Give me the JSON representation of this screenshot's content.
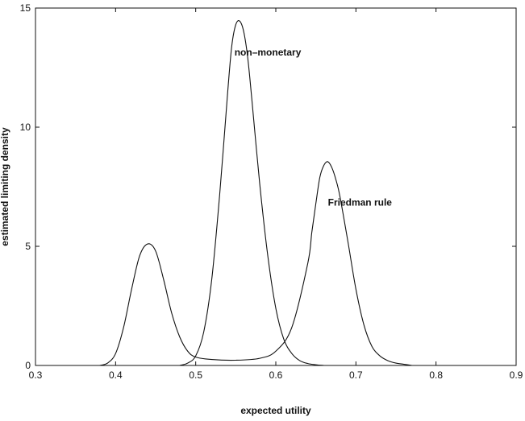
{
  "chart_data": {
    "type": "line",
    "title": "",
    "xlabel": "expected utility",
    "ylabel": "estimated limiting density",
    "xlim": [
      0.3,
      0.9
    ],
    "ylim": [
      0,
      15
    ],
    "xticks": [
      0.3,
      0.4,
      0.5,
      0.6,
      0.7,
      0.8,
      0.9
    ],
    "xtick_labels": [
      "0.3",
      "0.4",
      "0.5",
      "0.6",
      "0.7",
      "0.8",
      "0.9"
    ],
    "yticks": [
      0,
      5,
      10,
      15
    ],
    "ytick_labels": [
      "0",
      "5",
      "10",
      "15"
    ],
    "grid": false,
    "line_color": "#111111",
    "series": [
      {
        "x": [
          0.38,
          0.39,
          0.4,
          0.41,
          0.42,
          0.43,
          0.44,
          0.45,
          0.46,
          0.47,
          0.48,
          0.49,
          0.5,
          0.52,
          0.55,
          0.58,
          0.6,
          0.62,
          0.64,
          0.645,
          0.65,
          0.655,
          0.66,
          0.665,
          0.67,
          0.675,
          0.68,
          0.69,
          0.7,
          0.71,
          0.72,
          0.73,
          0.74,
          0.75,
          0.76,
          0.77
        ],
        "y": [
          0.0,
          0.1,
          0.5,
          1.6,
          3.2,
          4.6,
          5.1,
          4.8,
          3.6,
          2.2,
          1.2,
          0.6,
          0.35,
          0.25,
          0.22,
          0.3,
          0.6,
          1.6,
          4.3,
          5.6,
          6.8,
          7.9,
          8.4,
          8.55,
          8.3,
          7.8,
          7.1,
          5.2,
          3.2,
          1.7,
          0.8,
          0.4,
          0.2,
          0.1,
          0.05,
          0.0
        ]
      },
      {
        "x": [
          0.48,
          0.49,
          0.5,
          0.51,
          0.52,
          0.53,
          0.54,
          0.545,
          0.55,
          0.555,
          0.56,
          0.565,
          0.57,
          0.58,
          0.59,
          0.6,
          0.61,
          0.62,
          0.63,
          0.64,
          0.65,
          0.66
        ],
        "y": [
          0.0,
          0.1,
          0.4,
          1.4,
          3.6,
          7.2,
          11.5,
          13.4,
          14.3,
          14.45,
          14.0,
          12.9,
          11.2,
          7.6,
          4.6,
          2.4,
          1.1,
          0.5,
          0.2,
          0.08,
          0.03,
          0.0
        ]
      }
    ],
    "annotations": [
      {
        "text": "non–monetary",
        "x": 0.59,
        "y": 13.0
      },
      {
        "text": "Friedman rule",
        "x": 0.705,
        "y": 6.7
      }
    ]
  }
}
